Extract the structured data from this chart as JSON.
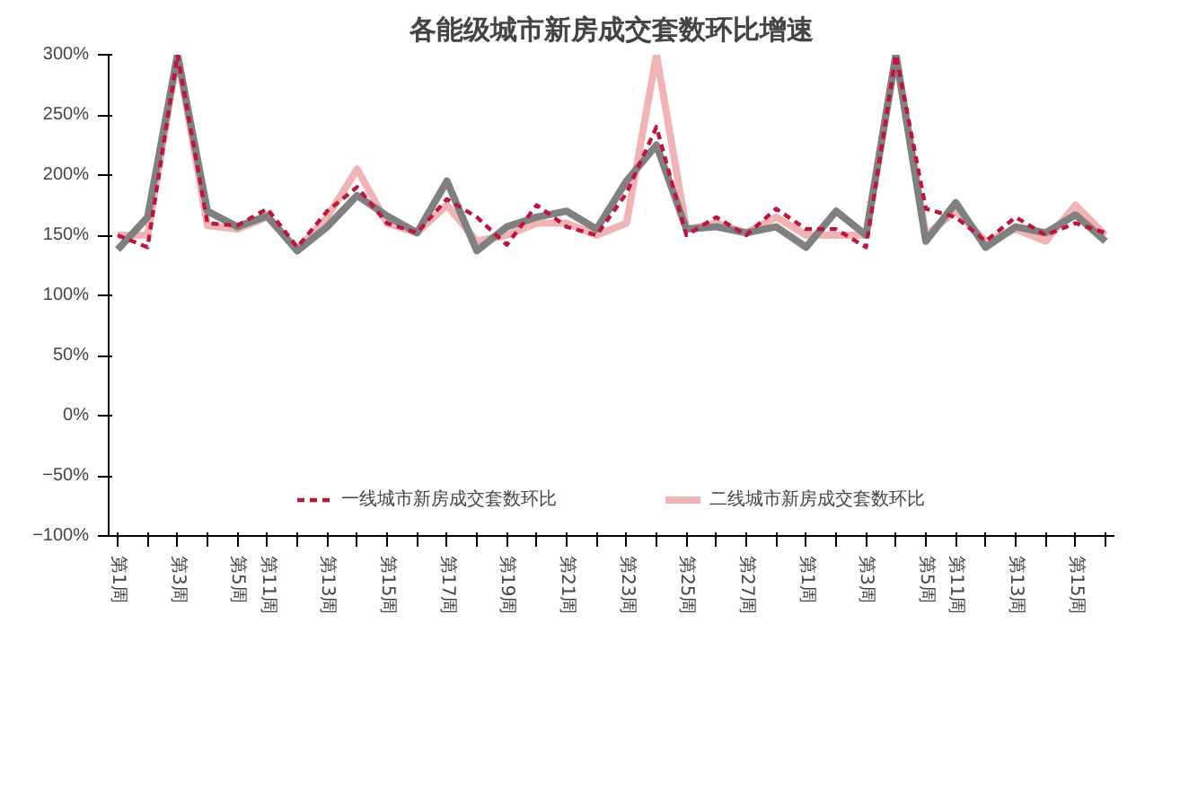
{
  "chart_data": {
    "type": "line",
    "title": "各能级城市新房成交套数环比增速",
    "categories": [
      "第1周",
      null,
      "第3周",
      null,
      "第5周",
      "第11周",
      null,
      "第13周",
      null,
      "第15周",
      null,
      "第17周",
      null,
      "第19周",
      null,
      "第21周",
      null,
      "第23周",
      null,
      "第25周",
      null,
      "第27周",
      null,
      "第1周",
      null,
      "第3周",
      null,
      "第5周",
      "第11周",
      null,
      "第13周",
      null,
      "第15周",
      null
    ],
    "series": [
      {
        "name": "一线城市新房成交套数环比",
        "color": "#c0143c",
        "line_style": "dashed",
        "values": [
          150,
          140,
          300,
          160,
          158,
          172,
          140,
          170,
          190,
          160,
          152,
          180,
          165,
          142,
          175,
          157,
          150,
          185,
          240,
          150,
          165,
          150,
          172,
          155,
          155,
          140,
          300,
          172,
          165,
          145,
          165,
          150,
          160,
          152
        ]
      },
      {
        "name": "二线城市新房成交套数环比",
        "color": "#f0b4b4",
        "line_style": "solid",
        "values": [
          150,
          150,
          300,
          158,
          155,
          165,
          138,
          165,
          205,
          160,
          152,
          175,
          145,
          150,
          160,
          160,
          150,
          160,
          300,
          155,
          160,
          152,
          165,
          150,
          150,
          150,
          300,
          150,
          170,
          145,
          155,
          145,
          175,
          150
        ]
      },
      {
        "color": "#808080",
        "line_style": "solid",
        "values": [
          138,
          165,
          300,
          170,
          157,
          166,
          137,
          157,
          183,
          166,
          152,
          195,
          137,
          157,
          165,
          170,
          155,
          195,
          225,
          155,
          157,
          152,
          157,
          140,
          170,
          150,
          300,
          145,
          177,
          140,
          157,
          152,
          167,
          145
        ]
      }
    ],
    "ylim": [
      -100,
      300
    ],
    "yticks": [
      {
        "value": -100,
        "label": "−100%"
      },
      {
        "value": -50,
        "label": "−50%"
      },
      {
        "value": 0,
        "label": "0%"
      },
      {
        "value": 50,
        "label": "50%"
      },
      {
        "value": 100,
        "label": "100%"
      },
      {
        "value": 150,
        "label": "150%"
      },
      {
        "value": 200,
        "label": "200%"
      },
      {
        "value": 250,
        "label": "250%"
      },
      {
        "value": 300,
        "label": "300%"
      }
    ],
    "grid": false,
    "legend": "bottom",
    "marker": "none"
  }
}
